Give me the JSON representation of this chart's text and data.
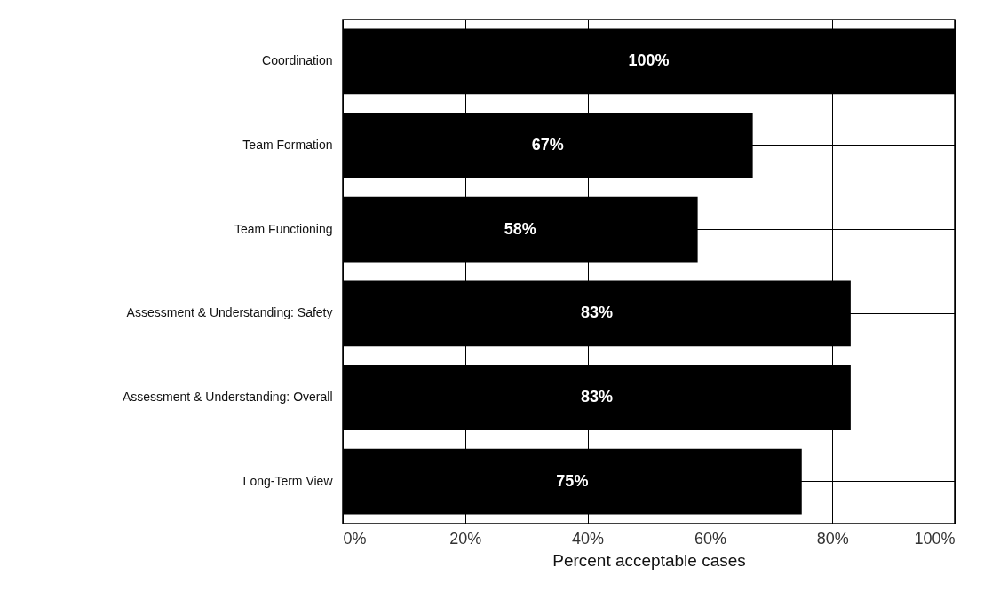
{
  "chart_data": {
    "type": "bar",
    "orientation": "horizontal",
    "xlabel": "Percent acceptable cases",
    "categories": [
      "Coordination",
      "Team Formation",
      "Team Functioning",
      "Assessment & Understanding: Safety",
      "Assessment & Understanding: Overall",
      "Long-Term View"
    ],
    "values": [
      100,
      67,
      58,
      83,
      83,
      75
    ],
    "value_labels": [
      "100%",
      "67%",
      "58%",
      "83%",
      "83%",
      "75%"
    ],
    "color": "#000000",
    "xlim": [
      0,
      100
    ],
    "xticks": [
      {
        "value": 0,
        "label": "0%"
      },
      {
        "value": 20,
        "label": "20%"
      },
      {
        "value": 40,
        "label": "40%"
      },
      {
        "value": 60,
        "label": "60%"
      },
      {
        "value": 80,
        "label": "80%"
      },
      {
        "value": 100,
        "label": "100%"
      }
    ],
    "grid": true
  }
}
